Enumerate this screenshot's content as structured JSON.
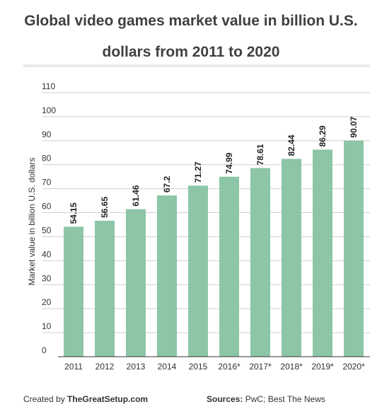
{
  "title_lines": [
    "Global video games market value in billion U.S.",
    "dollars from 2011 to 2020"
  ],
  "footer": {
    "created_label": "Created by",
    "created_source": "TheGreatSetup.com",
    "sources_label": "Sources:",
    "sources_value": "PwC; Best The News"
  },
  "colors": {
    "bar": "#8dc6a7",
    "grid": "#cfcfcf",
    "axis": "#333333",
    "rule": "#e9e9e9"
  },
  "chart_data": {
    "type": "bar",
    "title": "Global video games market value in billion U.S. dollars from 2011 to 2020",
    "xlabel": "",
    "ylabel": "Market value in billion U.S. dollars",
    "categories": [
      "2011",
      "2012",
      "2013",
      "2014",
      "2015",
      "2016*",
      "2017*",
      "2018*",
      "2019*",
      "2020*"
    ],
    "values": [
      54.15,
      56.65,
      61.46,
      67.2,
      71.27,
      74.99,
      78.61,
      82.44,
      86.29,
      90.07
    ],
    "data_labels": [
      "54.15",
      "56.65",
      "61.46",
      "67.2",
      "71.27",
      "74.99",
      "78.61",
      "82.44",
      "86.29",
      "90.07"
    ],
    "yticks": [
      "0",
      "10",
      "20",
      "30",
      "40",
      "50",
      "60",
      "70",
      "80",
      "90",
      "100",
      "110"
    ],
    "ylim": [
      0,
      110
    ],
    "grid": true,
    "legend": false
  }
}
